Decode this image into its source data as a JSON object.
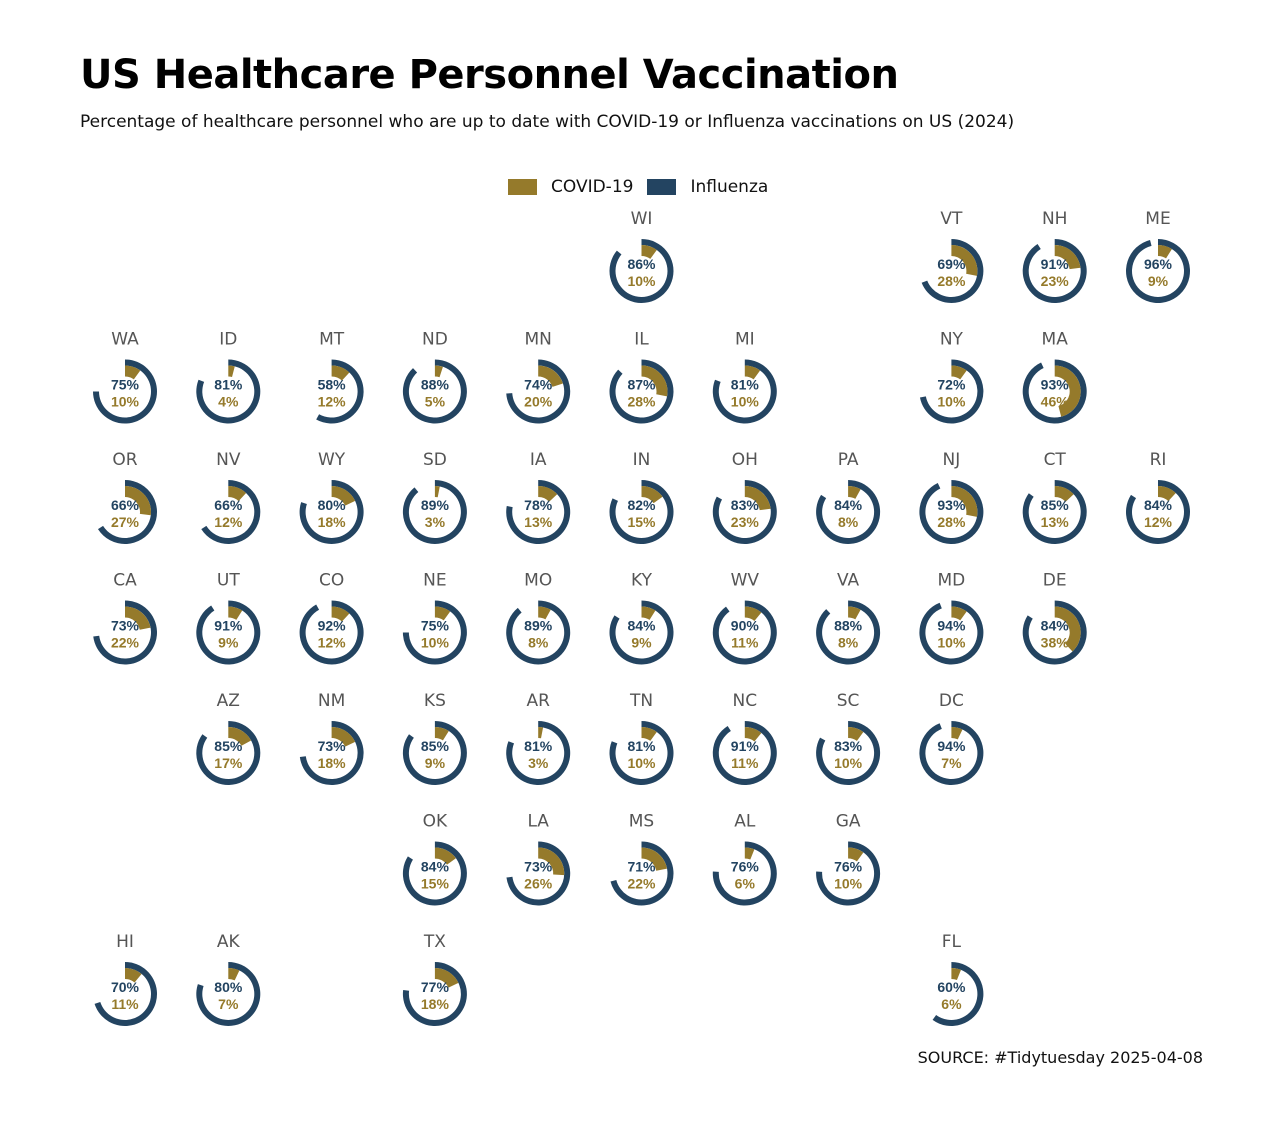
{
  "header": {
    "title": "US Healthcare Personnel Vaccination",
    "subtitle": "Percentage of healthcare personnel who are up to date with COVID-19 or Influenza vaccinations on US (2024)"
  },
  "legend": {
    "items": [
      {
        "label": "COVID-19",
        "color": "#957a2b"
      },
      {
        "label": "Influenza",
        "color": "#234461"
      }
    ]
  },
  "source": "SOURCE: #Tidytuesday 2025-04-08",
  "chart_data": {
    "type": "radial-bar-tile-map",
    "value_unit": "%",
    "series": [
      {
        "name": "COVID-19",
        "color": "#957a2b",
        "key": "covid"
      },
      {
        "name": "Influenza",
        "color": "#234461",
        "key": "flu"
      }
    ],
    "states": [
      {
        "abbr": "WI",
        "row": 0,
        "col": 5,
        "flu": 86,
        "covid": 10
      },
      {
        "abbr": "VT",
        "row": 0,
        "col": 8,
        "flu": 69,
        "covid": 28
      },
      {
        "abbr": "NH",
        "row": 0,
        "col": 9,
        "flu": 91,
        "covid": 23
      },
      {
        "abbr": "ME",
        "row": 0,
        "col": 10,
        "flu": 96,
        "covid": 9
      },
      {
        "abbr": "WA",
        "row": 1,
        "col": 0,
        "flu": 75,
        "covid": 10
      },
      {
        "abbr": "ID",
        "row": 1,
        "col": 1,
        "flu": 81,
        "covid": 4
      },
      {
        "abbr": "MT",
        "row": 1,
        "col": 2,
        "flu": 58,
        "covid": 12
      },
      {
        "abbr": "ND",
        "row": 1,
        "col": 3,
        "flu": 88,
        "covid": 5
      },
      {
        "abbr": "MN",
        "row": 1,
        "col": 4,
        "flu": 74,
        "covid": 20
      },
      {
        "abbr": "IL",
        "row": 1,
        "col": 5,
        "flu": 87,
        "covid": 28
      },
      {
        "abbr": "MI",
        "row": 1,
        "col": 6,
        "flu": 81,
        "covid": 10
      },
      {
        "abbr": "NY",
        "row": 1,
        "col": 8,
        "flu": 72,
        "covid": 10
      },
      {
        "abbr": "MA",
        "row": 1,
        "col": 9,
        "flu": 93,
        "covid": 46
      },
      {
        "abbr": "OR",
        "row": 2,
        "col": 0,
        "flu": 66,
        "covid": 27
      },
      {
        "abbr": "NV",
        "row": 2,
        "col": 1,
        "flu": 66,
        "covid": 12
      },
      {
        "abbr": "WY",
        "row": 2,
        "col": 2,
        "flu": 80,
        "covid": 18
      },
      {
        "abbr": "SD",
        "row": 2,
        "col": 3,
        "flu": 89,
        "covid": 3
      },
      {
        "abbr": "IA",
        "row": 2,
        "col": 4,
        "flu": 78,
        "covid": 13
      },
      {
        "abbr": "IN",
        "row": 2,
        "col": 5,
        "flu": 82,
        "covid": 15
      },
      {
        "abbr": "OH",
        "row": 2,
        "col": 6,
        "flu": 83,
        "covid": 23
      },
      {
        "abbr": "PA",
        "row": 2,
        "col": 7,
        "flu": 84,
        "covid": 8
      },
      {
        "abbr": "NJ",
        "row": 2,
        "col": 8,
        "flu": 93,
        "covid": 28
      },
      {
        "abbr": "CT",
        "row": 2,
        "col": 9,
        "flu": 85,
        "covid": 13
      },
      {
        "abbr": "RI",
        "row": 2,
        "col": 10,
        "flu": 84,
        "covid": 12
      },
      {
        "abbr": "CA",
        "row": 3,
        "col": 0,
        "flu": 73,
        "covid": 22
      },
      {
        "abbr": "UT",
        "row": 3,
        "col": 1,
        "flu": 91,
        "covid": 9
      },
      {
        "abbr": "CO",
        "row": 3,
        "col": 2,
        "flu": 92,
        "covid": 12
      },
      {
        "abbr": "NE",
        "row": 3,
        "col": 3,
        "flu": 75,
        "covid": 10
      },
      {
        "abbr": "MO",
        "row": 3,
        "col": 4,
        "flu": 89,
        "covid": 8
      },
      {
        "abbr": "KY",
        "row": 3,
        "col": 5,
        "flu": 84,
        "covid": 9
      },
      {
        "abbr": "WV",
        "row": 3,
        "col": 6,
        "flu": 90,
        "covid": 11
      },
      {
        "abbr": "VA",
        "row": 3,
        "col": 7,
        "flu": 88,
        "covid": 8
      },
      {
        "abbr": "MD",
        "row": 3,
        "col": 8,
        "flu": 94,
        "covid": 10
      },
      {
        "abbr": "DE",
        "row": 3,
        "col": 9,
        "flu": 84,
        "covid": 38
      },
      {
        "abbr": "AZ",
        "row": 4,
        "col": 1,
        "flu": 85,
        "covid": 17
      },
      {
        "abbr": "NM",
        "row": 4,
        "col": 2,
        "flu": 73,
        "covid": 18
      },
      {
        "abbr": "KS",
        "row": 4,
        "col": 3,
        "flu": 85,
        "covid": 9
      },
      {
        "abbr": "AR",
        "row": 4,
        "col": 4,
        "flu": 81,
        "covid": 3
      },
      {
        "abbr": "TN",
        "row": 4,
        "col": 5,
        "flu": 81,
        "covid": 10
      },
      {
        "abbr": "NC",
        "row": 4,
        "col": 6,
        "flu": 91,
        "covid": 11
      },
      {
        "abbr": "SC",
        "row": 4,
        "col": 7,
        "flu": 83,
        "covid": 10
      },
      {
        "abbr": "DC",
        "row": 4,
        "col": 8,
        "flu": 94,
        "covid": 7
      },
      {
        "abbr": "OK",
        "row": 5,
        "col": 3,
        "flu": 84,
        "covid": 15
      },
      {
        "abbr": "LA",
        "row": 5,
        "col": 4,
        "flu": 73,
        "covid": 26
      },
      {
        "abbr": "MS",
        "row": 5,
        "col": 5,
        "flu": 71,
        "covid": 22
      },
      {
        "abbr": "AL",
        "row": 5,
        "col": 6,
        "flu": 76,
        "covid": 6
      },
      {
        "abbr": "GA",
        "row": 5,
        "col": 7,
        "flu": 76,
        "covid": 10
      },
      {
        "abbr": "HI",
        "row": 6,
        "col": 0,
        "flu": 70,
        "covid": 11
      },
      {
        "abbr": "AK",
        "row": 6,
        "col": 1,
        "flu": 80,
        "covid": 7
      },
      {
        "abbr": "TX",
        "row": 6,
        "col": 3,
        "flu": 77,
        "covid": 18
      },
      {
        "abbr": "FL",
        "row": 6,
        "col": 8,
        "flu": 60,
        "covid": 6
      }
    ]
  }
}
